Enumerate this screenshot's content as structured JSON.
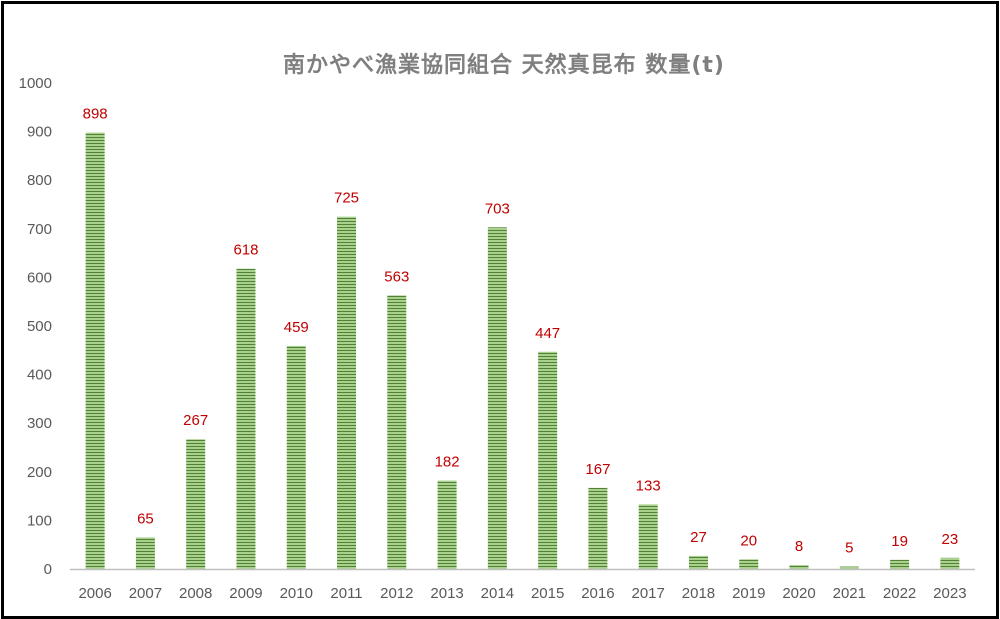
{
  "chart_data": {
    "type": "bar",
    "title": "南かやべ漁業協同組合 天然真昆布 数量(t)",
    "xlabel": "",
    "ylabel": "",
    "categories": [
      "2006",
      "2007",
      "2008",
      "2009",
      "2010",
      "2011",
      "2012",
      "2013",
      "2014",
      "2015",
      "2016",
      "2017",
      "2018",
      "2019",
      "2020",
      "2021",
      "2022",
      "2023"
    ],
    "values": [
      898,
      65,
      267,
      618,
      459,
      725,
      563,
      182,
      703,
      447,
      167,
      133,
      27,
      20,
      8,
      5,
      19,
      23
    ],
    "ylim": [
      0,
      1000
    ],
    "yticks": [
      0,
      100,
      200,
      300,
      400,
      500,
      600,
      700,
      800,
      900,
      1000
    ],
    "grid": false,
    "legend": "none",
    "data_labels": true
  },
  "colors": {
    "bar_light": "#a9d18e",
    "bar_dark": "#548235",
    "label": "#c00000",
    "axis": "#bfbfbf",
    "title": "#7f7f7f",
    "tick": "#595959"
  }
}
